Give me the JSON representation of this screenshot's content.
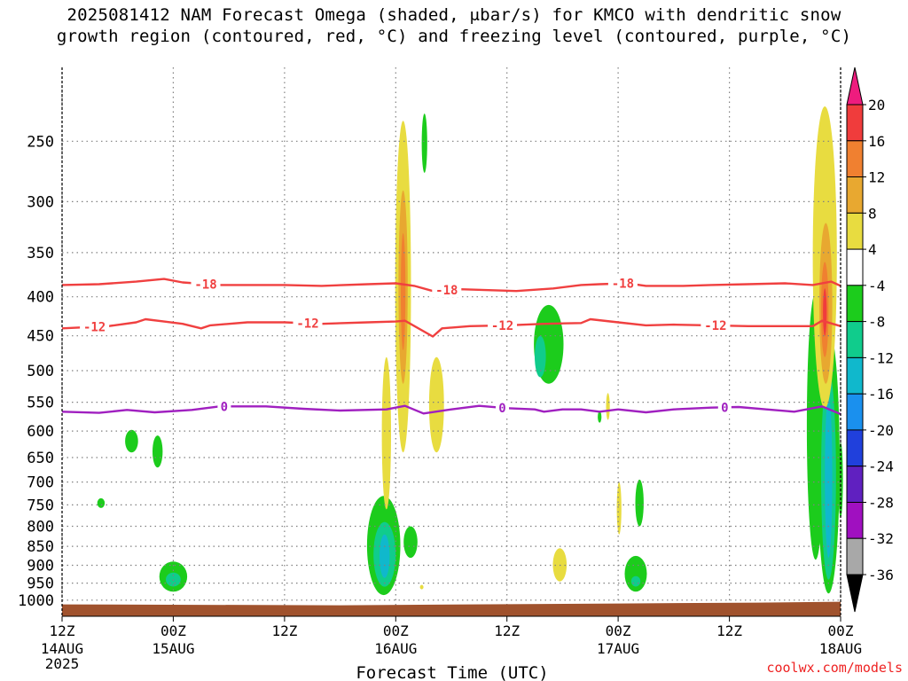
{
  "title_lines": [
    "2025081412 NAM Forecast Omega (shaded, μbar/s) for KMCO with dendritic snow",
    "growth region (contoured, red, °C) and freezing level (contoured, purple, °C)"
  ],
  "credit": "coolwx.com/models",
  "chart_data": {
    "type": "heatmap",
    "title": "2025081412 NAM Forecast Omega (shaded, μbar/s) for KMCO with dendritic snow growth region (contoured, red, °C) and freezing level (contoured, purple, °C)",
    "xlabel": "Forecast Time (UTC)",
    "ylabel": "",
    "x_unit": "hours since 2025-08-14 12Z",
    "xlim": [
      0,
      84
    ],
    "ylim": [
      1050,
      200
    ],
    "y_scale": "log-pressure (inverted)",
    "x_ticks": [
      {
        "h": 0,
        "label": "12Z",
        "sub": "14AUG",
        "sub2": "2025"
      },
      {
        "h": 12,
        "label": "00Z",
        "sub": "15AUG",
        "sub2": ""
      },
      {
        "h": 24,
        "label": "12Z",
        "sub": "",
        "sub2": ""
      },
      {
        "h": 36,
        "label": "00Z",
        "sub": "16AUG",
        "sub2": ""
      },
      {
        "h": 48,
        "label": "12Z",
        "sub": "",
        "sub2": ""
      },
      {
        "h": 60,
        "label": "00Z",
        "sub": "17AUG",
        "sub2": ""
      },
      {
        "h": 72,
        "label": "12Z",
        "sub": "",
        "sub2": ""
      },
      {
        "h": 84,
        "label": "00Z",
        "sub": "18AUG",
        "sub2": ""
      }
    ],
    "y_ticks": [
      250,
      300,
      350,
      400,
      450,
      500,
      550,
      600,
      650,
      700,
      750,
      800,
      850,
      900,
      950,
      1000
    ],
    "grid": true,
    "colorbar": {
      "labels": [
        "20",
        "16",
        "12",
        "8",
        "4",
        "-4",
        "-8",
        "-12",
        "-16",
        "-20",
        "-24",
        "-28",
        "-32",
        "-36"
      ],
      "bins": [
        {
          "range": "20+",
          "color": "#ee1c7e"
        },
        {
          "range": "16 to 20",
          "color": "#f03c3c"
        },
        {
          "range": "12 to 16",
          "color": "#f08030"
        },
        {
          "range": "8 to 12",
          "color": "#e8a830"
        },
        {
          "range": "4 to 8",
          "color": "#e8dc40"
        },
        {
          "range": "-4 to 4",
          "color": "#ffffff"
        },
        {
          "range": "-8 to -4",
          "color": "#1ccc1c"
        },
        {
          "range": "-12 to -8",
          "color": "#10cc8c"
        },
        {
          "range": "-16 to -12",
          "color": "#10b8cc"
        },
        {
          "range": "-20 to -16",
          "color": "#1a90ee"
        },
        {
          "range": "-24 to -20",
          "color": "#2040dc"
        },
        {
          "range": "-28 to -24",
          "color": "#6020c0"
        },
        {
          "range": "-32 to -28",
          "color": "#a010c0"
        },
        {
          "range": "-36 to -32",
          "color": "#a8a8a8"
        },
        {
          "range": "< -36",
          "color": "#000000"
        }
      ]
    },
    "contours": [
      {
        "name": "-18",
        "color": "#f04040",
        "labels_at_h": [
          15.5,
          41.5,
          60.5
        ],
        "points": [
          [
            0,
            386
          ],
          [
            4,
            385
          ],
          [
            8,
            382
          ],
          [
            11,
            379
          ],
          [
            13,
            383
          ],
          [
            17,
            386
          ],
          [
            24,
            386
          ],
          [
            28,
            387
          ],
          [
            33,
            385
          ],
          [
            36,
            384
          ],
          [
            38,
            387
          ],
          [
            40,
            393
          ],
          [
            43,
            391
          ],
          [
            49,
            393
          ],
          [
            53,
            390
          ],
          [
            56,
            386
          ],
          [
            58,
            385
          ],
          [
            61,
            384
          ],
          [
            63,
            387
          ],
          [
            67,
            387
          ],
          [
            70,
            386
          ],
          [
            74,
            385
          ],
          [
            78,
            384
          ],
          [
            81,
            386
          ],
          [
            83,
            382
          ],
          [
            84,
            387
          ]
        ]
      },
      {
        "name": "-12",
        "color": "#f04040",
        "labels_at_h": [
          3.5,
          26.5,
          47.5,
          70.5
        ],
        "points": [
          [
            0,
            440
          ],
          [
            5,
            437
          ],
          [
            8,
            432
          ],
          [
            9,
            428
          ],
          [
            11,
            431
          ],
          [
            13,
            434
          ],
          [
            15,
            440
          ],
          [
            16,
            436
          ],
          [
            20,
            432
          ],
          [
            24,
            432
          ],
          [
            28,
            434
          ],
          [
            33,
            432
          ],
          [
            36,
            431
          ],
          [
            37,
            430
          ],
          [
            40,
            451
          ],
          [
            41,
            440
          ],
          [
            44,
            437
          ],
          [
            48,
            436
          ],
          [
            52,
            434
          ],
          [
            56,
            433
          ],
          [
            57,
            428
          ],
          [
            60,
            432
          ],
          [
            63,
            436
          ],
          [
            66,
            435
          ],
          [
            70,
            436
          ],
          [
            74,
            437
          ],
          [
            78,
            437
          ],
          [
            81,
            437
          ],
          [
            82,
            430
          ],
          [
            84,
            437
          ]
        ]
      },
      {
        "name": "0",
        "color": "#a020c0",
        "labels_at_h": [
          17.5,
          47.5,
          71.5
        ],
        "points": [
          [
            0,
            566
          ],
          [
            4,
            568
          ],
          [
            7,
            563
          ],
          [
            10,
            567
          ],
          [
            14,
            563
          ],
          [
            17,
            557
          ],
          [
            22,
            557
          ],
          [
            26,
            561
          ],
          [
            30,
            564
          ],
          [
            35,
            562
          ],
          [
            37,
            556
          ],
          [
            39,
            569
          ],
          [
            42,
            562
          ],
          [
            45,
            556
          ],
          [
            48,
            560
          ],
          [
            51,
            562
          ],
          [
            52,
            566
          ],
          [
            54,
            562
          ],
          [
            56,
            562
          ],
          [
            58,
            566
          ],
          [
            60,
            562
          ],
          [
            63,
            567
          ],
          [
            66,
            562
          ],
          [
            70,
            559
          ],
          [
            73,
            558
          ],
          [
            76,
            562
          ],
          [
            79,
            566
          ],
          [
            82,
            557
          ],
          [
            84,
            570
          ]
        ]
      }
    ],
    "omega_regions": [
      {
        "bin": "-8 to -4",
        "h": 4.2,
        "p_top": 735,
        "p_bottom": 757,
        "w": 0.8
      },
      {
        "bin": "-8 to -4",
        "h": 7.5,
        "p_top": 598,
        "p_bottom": 640,
        "w": 1.4
      },
      {
        "bin": "-8 to -4",
        "h": 10.3,
        "p_top": 608,
        "p_bottom": 670,
        "w": 1.1
      },
      {
        "bin": "-8 to -4",
        "h": 12.0,
        "p_top": 890,
        "p_bottom": 975,
        "w": 3.0
      },
      {
        "bin": "-12 to -8",
        "h": 12.0,
        "p_top": 920,
        "p_bottom": 960,
        "w": 1.6
      },
      {
        "bin": "-8 to -4",
        "h": 34.7,
        "p_top": 730,
        "p_bottom": 985,
        "w": 3.6
      },
      {
        "bin": "-12 to -8",
        "h": 34.8,
        "p_top": 790,
        "p_bottom": 960,
        "w": 2.4
      },
      {
        "bin": "-16 to -12",
        "h": 34.8,
        "p_top": 820,
        "p_bottom": 935,
        "w": 1.1
      },
      {
        "bin": "-8 to -4",
        "h": 37.6,
        "p_top": 800,
        "p_bottom": 880,
        "w": 1.5
      },
      {
        "bin": "-8 to -4",
        "h": 39.1,
        "p_top": 230,
        "p_bottom": 275,
        "w": 0.6
      },
      {
        "bin": "-8 to -4",
        "h": 52.5,
        "p_top": 410,
        "p_bottom": 520,
        "w": 3.2
      },
      {
        "bin": "-12 to -8",
        "h": 51.6,
        "p_top": 450,
        "p_bottom": 510,
        "w": 1.2
      },
      {
        "bin": "-8 to -4",
        "h": 58.0,
        "p_top": 565,
        "p_bottom": 585,
        "w": 0.4
      },
      {
        "bin": "-8 to -4",
        "h": 62.3,
        "p_top": 695,
        "p_bottom": 800,
        "w": 0.9
      },
      {
        "bin": "-8 to -4",
        "h": 61.9,
        "p_top": 875,
        "p_bottom": 975,
        "w": 2.4
      },
      {
        "bin": "-12 to -8",
        "h": 61.9,
        "p_top": 930,
        "p_bottom": 960,
        "w": 1.0
      },
      {
        "bin": "-8 to -4",
        "h": 81.3,
        "p_top": 395,
        "p_bottom": 885,
        "w": 1.9
      },
      {
        "bin": "-8 to -4",
        "h": 82.7,
        "p_top": 440,
        "p_bottom": 980,
        "w": 2.4
      },
      {
        "bin": "-12 to -8",
        "h": 82.7,
        "p_top": 500,
        "p_bottom": 940,
        "w": 1.6
      },
      {
        "bin": "-16 to -12",
        "h": 82.7,
        "p_top": 540,
        "p_bottom": 880,
        "w": 0.8
      },
      {
        "bin": "-8 to -4",
        "h": 84.0,
        "p_top": 620,
        "p_bottom": 780,
        "w": 0.5
      },
      {
        "bin": "4 to 8",
        "h": 36.8,
        "p_top": 235,
        "p_bottom": 640,
        "w": 1.7
      },
      {
        "bin": "8 to 12",
        "h": 36.8,
        "p_top": 290,
        "p_bottom": 520,
        "w": 1.0
      },
      {
        "bin": "12 to 16",
        "h": 36.8,
        "p_top": 330,
        "p_bottom": 470,
        "w": 0.5
      },
      {
        "bin": "4 to 8",
        "h": 35.0,
        "p_top": 480,
        "p_bottom": 760,
        "w": 1.0
      },
      {
        "bin": "4 to 8",
        "h": 40.4,
        "p_top": 480,
        "p_bottom": 640,
        "w": 1.6
      },
      {
        "bin": "4 to 8",
        "h": 38.8,
        "p_top": 955,
        "p_bottom": 968,
        "w": 0.3
      },
      {
        "bin": "4 to 8",
        "h": 53.7,
        "p_top": 855,
        "p_bottom": 945,
        "w": 1.5
      },
      {
        "bin": "4 to 8",
        "h": 58.9,
        "p_top": 535,
        "p_bottom": 580,
        "w": 0.4
      },
      {
        "bin": "4 to 8",
        "h": 60.1,
        "p_top": 700,
        "p_bottom": 820,
        "w": 0.5
      },
      {
        "bin": "4 to 8",
        "h": 82.3,
        "p_top": 225,
        "p_bottom": 560,
        "w": 2.6
      },
      {
        "bin": "8 to 12",
        "h": 82.4,
        "p_top": 320,
        "p_bottom": 520,
        "w": 1.4
      },
      {
        "bin": "12 to 16",
        "h": 82.3,
        "p_top": 360,
        "p_bottom": 480,
        "w": 0.8
      },
      {
        "bin": "16 to 20",
        "h": 82.3,
        "p_top": 390,
        "p_bottom": 450,
        "w": 0.4
      }
    ],
    "ground_color": "#a0522d"
  }
}
